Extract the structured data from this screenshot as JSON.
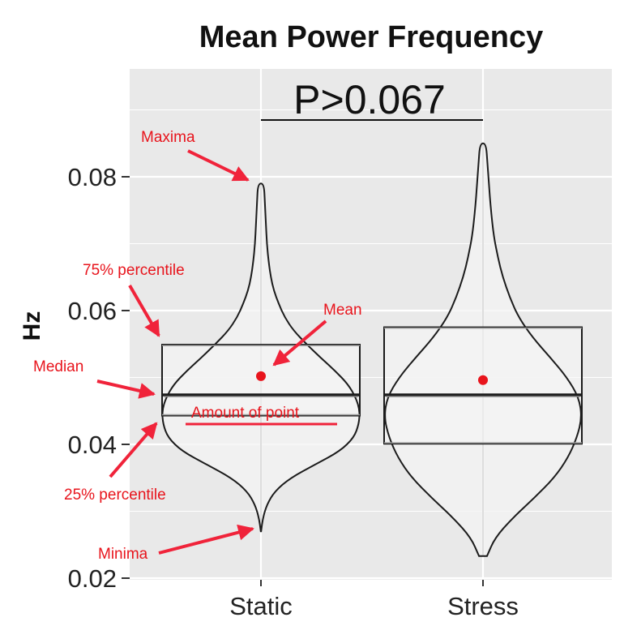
{
  "chart_data": {
    "type": "violin+box",
    "title": "Mean Power Frequency",
    "ylabel": "Hz",
    "xlabel": "",
    "categories": [
      "Static",
      "Stress"
    ],
    "ylim": [
      0.018,
      0.1
    ],
    "yticks": [
      0.02,
      0.04,
      0.06,
      0.08
    ],
    "ytick_labels": [
      "0.02",
      "0.04",
      "0.06",
      "0.08"
    ],
    "grid": true,
    "significance": {
      "label": "P>0.067",
      "from": "Static",
      "to": "Stress"
    },
    "groups": [
      {
        "name": "Static",
        "min": 0.027,
        "q1": 0.0443,
        "median": 0.0474,
        "q3": 0.0549,
        "max": 0.079,
        "mean": 0.0502,
        "density": [
          [
            0.027,
            0.002
          ],
          [
            0.029,
            0.02
          ],
          [
            0.031,
            0.06
          ],
          [
            0.033,
            0.14
          ],
          [
            0.035,
            0.3
          ],
          [
            0.037,
            0.55
          ],
          [
            0.039,
            0.8
          ],
          [
            0.041,
            0.94
          ],
          [
            0.043,
            0.99
          ],
          [
            0.045,
            1.0
          ],
          [
            0.047,
            0.96
          ],
          [
            0.049,
            0.88
          ],
          [
            0.051,
            0.75
          ],
          [
            0.053,
            0.6
          ],
          [
            0.055,
            0.46
          ],
          [
            0.057,
            0.33
          ],
          [
            0.059,
            0.24
          ],
          [
            0.061,
            0.18
          ],
          [
            0.063,
            0.13
          ],
          [
            0.065,
            0.1
          ],
          [
            0.067,
            0.08
          ],
          [
            0.07,
            0.06
          ],
          [
            0.073,
            0.05
          ],
          [
            0.076,
            0.04
          ],
          [
            0.079,
            0.03
          ]
        ]
      },
      {
        "name": "Stress",
        "min": 0.0233,
        "q1": 0.0401,
        "median": 0.0474,
        "q3": 0.0575,
        "max": 0.085,
        "mean": 0.0496,
        "density": [
          [
            0.0233,
            0.04
          ],
          [
            0.026,
            0.12
          ],
          [
            0.029,
            0.3
          ],
          [
            0.032,
            0.52
          ],
          [
            0.035,
            0.72
          ],
          [
            0.038,
            0.86
          ],
          [
            0.041,
            0.95
          ],
          [
            0.044,
            1.0
          ],
          [
            0.047,
            0.97
          ],
          [
            0.05,
            0.85
          ],
          [
            0.053,
            0.68
          ],
          [
            0.056,
            0.5
          ],
          [
            0.059,
            0.36
          ],
          [
            0.062,
            0.27
          ],
          [
            0.065,
            0.2
          ],
          [
            0.068,
            0.15
          ],
          [
            0.071,
            0.11
          ],
          [
            0.075,
            0.08
          ],
          [
            0.079,
            0.06
          ],
          [
            0.082,
            0.045
          ],
          [
            0.085,
            0.03
          ]
        ]
      }
    ],
    "annotations": [
      {
        "text": "Maxima",
        "target": "Static.max"
      },
      {
        "text": "75% percentile",
        "target": "Static.q3"
      },
      {
        "text": "Mean",
        "target": "Static.mean"
      },
      {
        "text": "Median",
        "target": "Static.median"
      },
      {
        "text": "Amount of point",
        "target": "Static.violin"
      },
      {
        "text": "25% percentile",
        "target": "Static.q1"
      },
      {
        "text": "Minima",
        "target": "Static.min"
      }
    ],
    "colors": {
      "panel": "#e9e9e9",
      "grid": "#ffffff",
      "violin_fill": "#f3f3f3",
      "mean_point": "#e8141c",
      "annotation": "#e8141c"
    }
  }
}
